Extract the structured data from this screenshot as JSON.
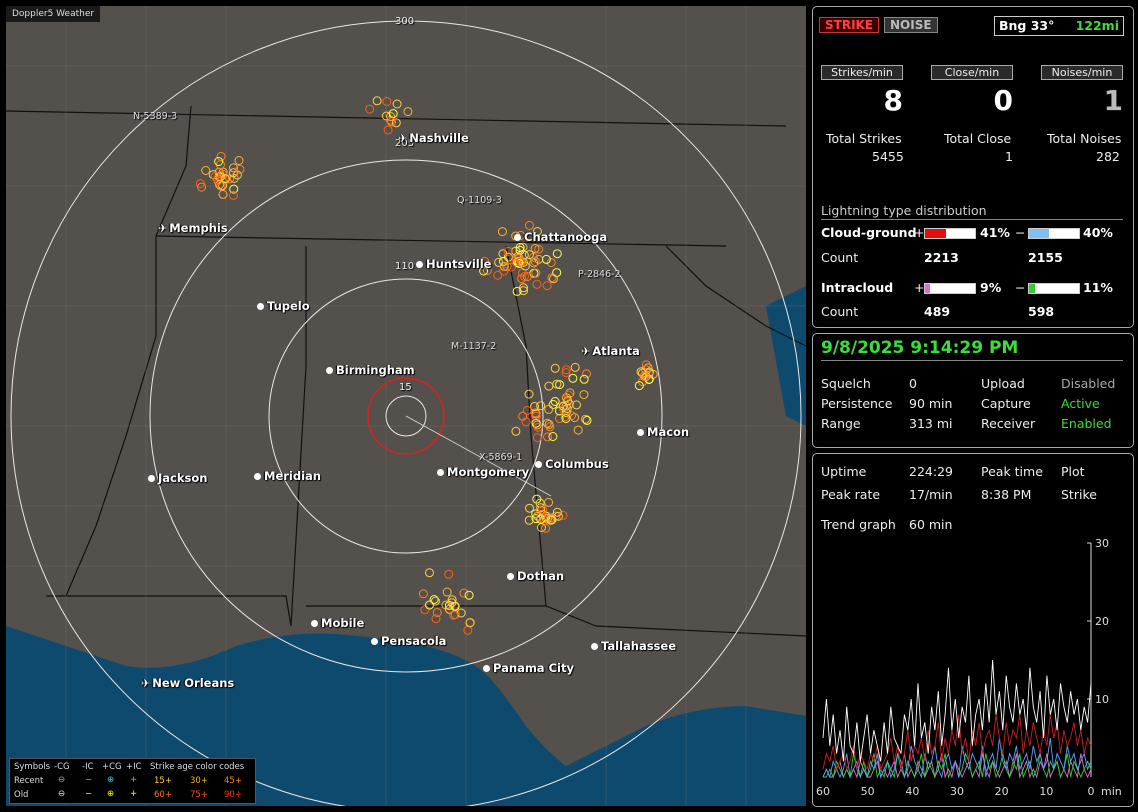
{
  "app_title": "Doppler5 Weather",
  "map": {
    "range_labels": [
      "300",
      "205",
      "110",
      "15"
    ],
    "cities": [
      {
        "name": "Nashville",
        "type": "airport"
      },
      {
        "name": "Memphis",
        "type": "airport"
      },
      {
        "name": "Chattanooga",
        "type": "dot"
      },
      {
        "name": "Huntsville",
        "type": "dot"
      },
      {
        "name": "Tupelo",
        "type": "dot"
      },
      {
        "name": "Atlanta",
        "type": "airport"
      },
      {
        "name": "Birmingham",
        "type": "dot"
      },
      {
        "name": "Macon",
        "type": "dot"
      },
      {
        "name": "Jackson",
        "type": "dot"
      },
      {
        "name": "Meridian",
        "type": "dot"
      },
      {
        "name": "Montgomery",
        "type": "dot"
      },
      {
        "name": "Columbus",
        "type": "dot"
      },
      {
        "name": "Dothan",
        "type": "dot"
      },
      {
        "name": "Mobile",
        "type": "dot"
      },
      {
        "name": "Pensacola",
        "type": "dot"
      },
      {
        "name": "Tallahassee",
        "type": "dot"
      },
      {
        "name": "Panama City",
        "type": "dot"
      },
      {
        "name": "New Orleans",
        "type": "airport"
      }
    ],
    "storm_labels": [
      "N-5389-3",
      "Q-1109-3",
      "P-2846-2",
      "M-1137-2",
      "X-5869-1"
    ]
  },
  "legend": {
    "symbols_label": "Symbols",
    "cols": [
      "-CG",
      "-IC",
      "+CG",
      "+IC"
    ],
    "recent_label": "Recent",
    "old_label": "Old",
    "age_title": "Strike age color codes",
    "recent_ages": [
      "15+",
      "30+",
      "45+"
    ],
    "old_ages": [
      "60+",
      "75+",
      "90+"
    ],
    "recent_age_colors": [
      "#ffd040",
      "#ffb030",
      "#ff8020"
    ],
    "old_age_colors": [
      "#ff7010",
      "#ff5010",
      "#ff3010"
    ]
  },
  "panel_top": {
    "strike_btn": "STRIKE",
    "noise_btn": "NOISE",
    "bearing": "Bng 33°",
    "distance": "122mi",
    "rate_labels": [
      "Strikes/min",
      "Close/min",
      "Noises/min"
    ],
    "rates": [
      "8",
      "0",
      "1"
    ],
    "total_labels": [
      "Total Strikes",
      "Total Close",
      "Total Noises"
    ],
    "totals": [
      "5455",
      "1",
      "282"
    ],
    "dist_title": "Lightning type distribution",
    "cloud_ground": "Cloud-ground",
    "intracloud": "Intracloud",
    "count_label": "Count",
    "cg_pos_pct": "41%",
    "cg_neg_pct": "40%",
    "cg_pos_count": "2213",
    "cg_neg_count": "2155",
    "ic_pos_pct": "9%",
    "ic_neg_pct": "11%",
    "ic_pos_count": "489",
    "ic_neg_count": "598",
    "cg_pos_frac": 0.41,
    "cg_neg_frac": 0.4,
    "ic_pos_frac": 0.09,
    "ic_neg_frac": 0.11,
    "plus": "+",
    "minus": "−"
  },
  "panel_mid": {
    "datetime": "9/8/2025 9:14:29 PM",
    "rows": [
      {
        "label": "Squelch",
        "value": "0",
        "label2": "Upload",
        "value2": "Disabled"
      },
      {
        "label": "Persistence",
        "value": "90 min",
        "label2": "Capture",
        "value2": "Active"
      },
      {
        "label": "Range",
        "value": "313 mi",
        "label2": "Receiver",
        "value2": "Enabled"
      }
    ]
  },
  "panel_bottom": {
    "uptime_label": "Uptime",
    "uptime": "224:29",
    "peak_time_label": "Peak time",
    "plot_label": "Plot",
    "peak_rate_label": "Peak rate",
    "peak_rate": "17/min",
    "peak_time": "8:38 PM",
    "plot": "Strike",
    "trend_label": "Trend graph",
    "trend": "60 min"
  },
  "chart_data": {
    "type": "line",
    "x_ticks": [
      "60",
      "50",
      "40",
      "30",
      "20",
      "10",
      "0"
    ],
    "x_unit": "min",
    "y_ticks": [
      "30",
      "20",
      "10"
    ],
    "ylim": [
      0,
      30
    ],
    "series": [
      {
        "color": "#ffffff",
        "values": [
          5,
          10,
          4,
          8,
          3,
          6,
          2,
          9,
          4,
          3,
          7,
          2,
          5,
          8,
          3,
          6,
          4,
          2,
          7,
          3,
          9,
          5,
          4,
          3,
          8,
          6,
          10,
          4,
          12,
          5,
          7,
          3,
          9,
          6,
          11,
          4,
          8,
          14,
          6,
          10,
          5,
          9,
          7,
          13,
          4,
          8,
          10,
          6,
          12,
          7,
          15,
          8,
          11,
          6,
          13,
          9,
          7,
          12,
          8,
          10,
          6,
          14,
          9,
          7,
          11,
          5,
          13,
          8,
          10,
          6,
          12,
          9,
          7,
          11,
          8,
          10,
          6,
          9,
          7,
          12
        ]
      },
      {
        "color": "#cc2020",
        "values": [
          1,
          3,
          2,
          4,
          1,
          2,
          3,
          1,
          2,
          4,
          1,
          3,
          2,
          1,
          3,
          2,
          4,
          1,
          2,
          3,
          5,
          2,
          4,
          1,
          3,
          6,
          2,
          4,
          3,
          5,
          2,
          6,
          3,
          4,
          7,
          2,
          5,
          3,
          6,
          4,
          8,
          3,
          5,
          2,
          6,
          4,
          7,
          3,
          5,
          6,
          4,
          8,
          5,
          3,
          7,
          4,
          6,
          5,
          8,
          3,
          6,
          4,
          7,
          5,
          3,
          6,
          4,
          8,
          5,
          7,
          3,
          6,
          4,
          5,
          7,
          4,
          6,
          3,
          5,
          4
        ]
      },
      {
        "color": "#60a0ff",
        "values": [
          0,
          1,
          0,
          2,
          1,
          0,
          1,
          3,
          0,
          1,
          2,
          0,
          1,
          0,
          2,
          1,
          3,
          0,
          1,
          2,
          0,
          1,
          3,
          2,
          0,
          1,
          4,
          2,
          1,
          0,
          3,
          1,
          2,
          4,
          1,
          0,
          2,
          3,
          1,
          2,
          0,
          4,
          2,
          1,
          3,
          2,
          1,
          4,
          0,
          2,
          3,
          1,
          5,
          2,
          1,
          3,
          2,
          4,
          1,
          2,
          3,
          1,
          4,
          2,
          3,
          1,
          2,
          5,
          1,
          3,
          2,
          1,
          4,
          2,
          3,
          1,
          2,
          3,
          1,
          2
        ]
      },
      {
        "color": "#30d030",
        "values": [
          0,
          0,
          1,
          0,
          2,
          1,
          0,
          1,
          0,
          3,
          1,
          0,
          2,
          0,
          1,
          3,
          0,
          1,
          0,
          2,
          1,
          0,
          3,
          1,
          0,
          2,
          1,
          0,
          1,
          3,
          0,
          2,
          1,
          0,
          2,
          1,
          3,
          0,
          1,
          2,
          0,
          1,
          3,
          2,
          0,
          1,
          2,
          0,
          3,
          1,
          2,
          0,
          1,
          3,
          1,
          0,
          2,
          1,
          3,
          0,
          1,
          2,
          0,
          1,
          3,
          1,
          0,
          2,
          1,
          2,
          0,
          1,
          3,
          0,
          2,
          1,
          0,
          1,
          2,
          1
        ]
      },
      {
        "color": "#e070d0",
        "values": [
          0,
          1,
          0,
          0,
          1,
          2,
          0,
          1,
          0,
          1,
          0,
          2,
          1,
          0,
          0,
          1,
          2,
          0,
          1,
          0,
          1,
          2,
          0,
          1,
          3,
          0,
          1,
          0,
          2,
          1,
          0,
          1,
          2,
          0,
          1,
          3,
          0,
          1,
          0,
          2,
          1,
          0,
          1,
          2,
          0,
          1,
          0,
          3,
          1,
          0,
          2,
          1,
          0,
          1,
          2,
          0,
          1,
          3,
          0,
          1,
          2,
          0,
          1,
          0,
          2,
          1,
          3,
          0,
          1,
          2,
          0,
          1,
          0,
          2,
          1,
          0,
          3,
          1,
          0,
          1
        ]
      }
    ]
  }
}
